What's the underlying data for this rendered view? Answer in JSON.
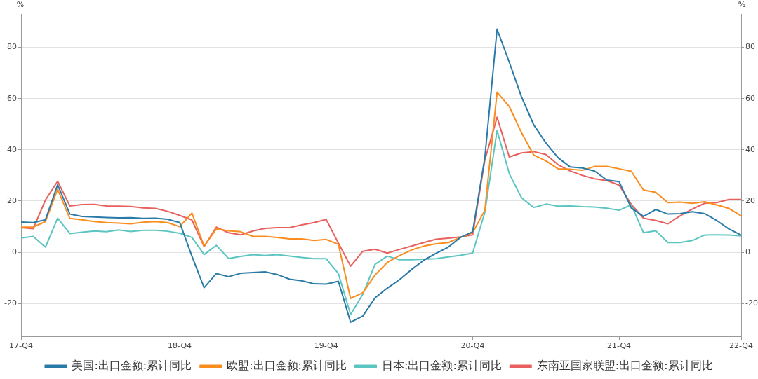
{
  "chart_data": {
    "type": "line",
    "ylabel": "%",
    "y2label": "%",
    "categories": [
      "17-Q4",
      null,
      null,
      null,
      null,
      null,
      null,
      null,
      null,
      null,
      null,
      null,
      null,
      "18-Q4",
      null,
      null,
      null,
      null,
      null,
      null,
      null,
      null,
      null,
      null,
      null,
      "19-Q4",
      null,
      null,
      null,
      null,
      null,
      null,
      null,
      null,
      null,
      null,
      null,
      "20-Q4",
      null,
      null,
      null,
      null,
      null,
      null,
      null,
      null,
      null,
      null,
      null,
      "21-Q4",
      null,
      null,
      null,
      null,
      null,
      null,
      null,
      null,
      null,
      "22-Q4"
    ],
    "series": [
      {
        "name": "美国:出口金额:累计同比",
        "color": "#2a7aa8",
        "values": [
          11.8,
          11.6,
          12.7,
          26.4,
          14.9,
          14.0,
          13.8,
          13.6,
          13.4,
          13.5,
          13.2,
          13.3,
          12.9,
          11.6,
          -1.5,
          -13.8,
          -8.3,
          -9.5,
          -8.2,
          -7.9,
          -7.6,
          -8.7,
          -10.5,
          -11.1,
          -12.3,
          -12.4,
          -11.3,
          -27.3,
          -24.9,
          -17.8,
          -14.0,
          -10.7,
          -6.7,
          -3.1,
          -0.4,
          2.0,
          5.8,
          8.0,
          37,
          87.1,
          74.2,
          60.7,
          49.8,
          42.7,
          36.9,
          33.3,
          32.9,
          31.7,
          28.2,
          27.6,
          17.3,
          14.0,
          16.7,
          14.9,
          15.1,
          15.8,
          15.1,
          12.4,
          9.1,
          6.7
        ]
      },
      {
        "name": "欧盟:出口金额:累计同比",
        "color": "#fb8c1e",
        "values": [
          9.8,
          9.8,
          12.0,
          24.6,
          13.2,
          12.7,
          12.0,
          11.6,
          11.4,
          11.1,
          11.7,
          12.0,
          11.6,
          10.0,
          15.3,
          2.4,
          9.1,
          8.4,
          8.0,
          6.2,
          6.2,
          5.8,
          5.2,
          5.2,
          4.6,
          5.0,
          3.1,
          -18.0,
          -15.8,
          -8.9,
          -4.0,
          -1.3,
          0.9,
          2.4,
          3.3,
          3.8,
          5.8,
          7.6,
          16.4,
          62.5,
          56.9,
          46.7,
          38.0,
          35.7,
          32.6,
          32.4,
          32.0,
          33.5,
          33.5,
          32.6,
          31.6,
          24.3,
          23.4,
          19.4,
          19.6,
          19.1,
          19.7,
          18.5,
          17.1,
          14.2
        ]
      },
      {
        "name": "日本:出口金额:累计同比",
        "color": "#5cc5c1",
        "values": [
          5.6,
          6.2,
          2.0,
          13.3,
          7.3,
          7.8,
          8.3,
          8.0,
          8.7,
          8.1,
          8.6,
          8.6,
          8.2,
          7.4,
          5.8,
          -0.9,
          2.7,
          -2.4,
          -1.6,
          -0.9,
          -1.3,
          -0.9,
          -1.5,
          -2.0,
          -2.5,
          -2.5,
          -8.3,
          -24.3,
          -16.4,
          -4.7,
          -1.5,
          -2.9,
          -2.9,
          -2.7,
          -2.5,
          -1.8,
          -1.2,
          -0.3,
          15.6,
          47.6,
          30.7,
          21.3,
          17.5,
          18.8,
          18.0,
          18.1,
          17.8,
          17.7,
          17.2,
          16.4,
          18.5,
          7.6,
          8.4,
          3.8,
          3.8,
          4.6,
          6.7,
          6.8,
          6.7,
          6.4
        ]
      },
      {
        "name": "东南亚国家联盟:出口金额:累计同比",
        "color": "#e8615f",
        "values": [
          9.6,
          9.2,
          20.4,
          27.7,
          18.1,
          18.6,
          18.7,
          18.1,
          18.0,
          17.9,
          17.3,
          17.1,
          16.0,
          14.4,
          12.6,
          2.2,
          9.8,
          7.6,
          6.8,
          8.3,
          9.3,
          9.6,
          9.6,
          10.7,
          11.6,
          12.8,
          3.6,
          -5.4,
          0.4,
          1.2,
          -0.3,
          1.1,
          2.4,
          3.8,
          5.1,
          5.5,
          6.0,
          6.8,
          36.0,
          52.7,
          37.2,
          38.8,
          39.3,
          38.2,
          34.2,
          31.7,
          30.0,
          28.7,
          28.0,
          26.2,
          18.7,
          13.3,
          12.4,
          11.1,
          14.2,
          16.9,
          19.1,
          19.4,
          20.6,
          20.6
        ]
      }
    ],
    "ylim": [
      -33,
      93
    ],
    "yticks": [
      -20,
      0,
      20,
      40,
      60,
      80
    ],
    "y2lim": [
      -33,
      93
    ],
    "y2ticks": [
      -20,
      0,
      20,
      40,
      60,
      80
    ],
    "grid": "y",
    "legend": "bottom",
    "marker": "none",
    "line_style": "solid"
  }
}
